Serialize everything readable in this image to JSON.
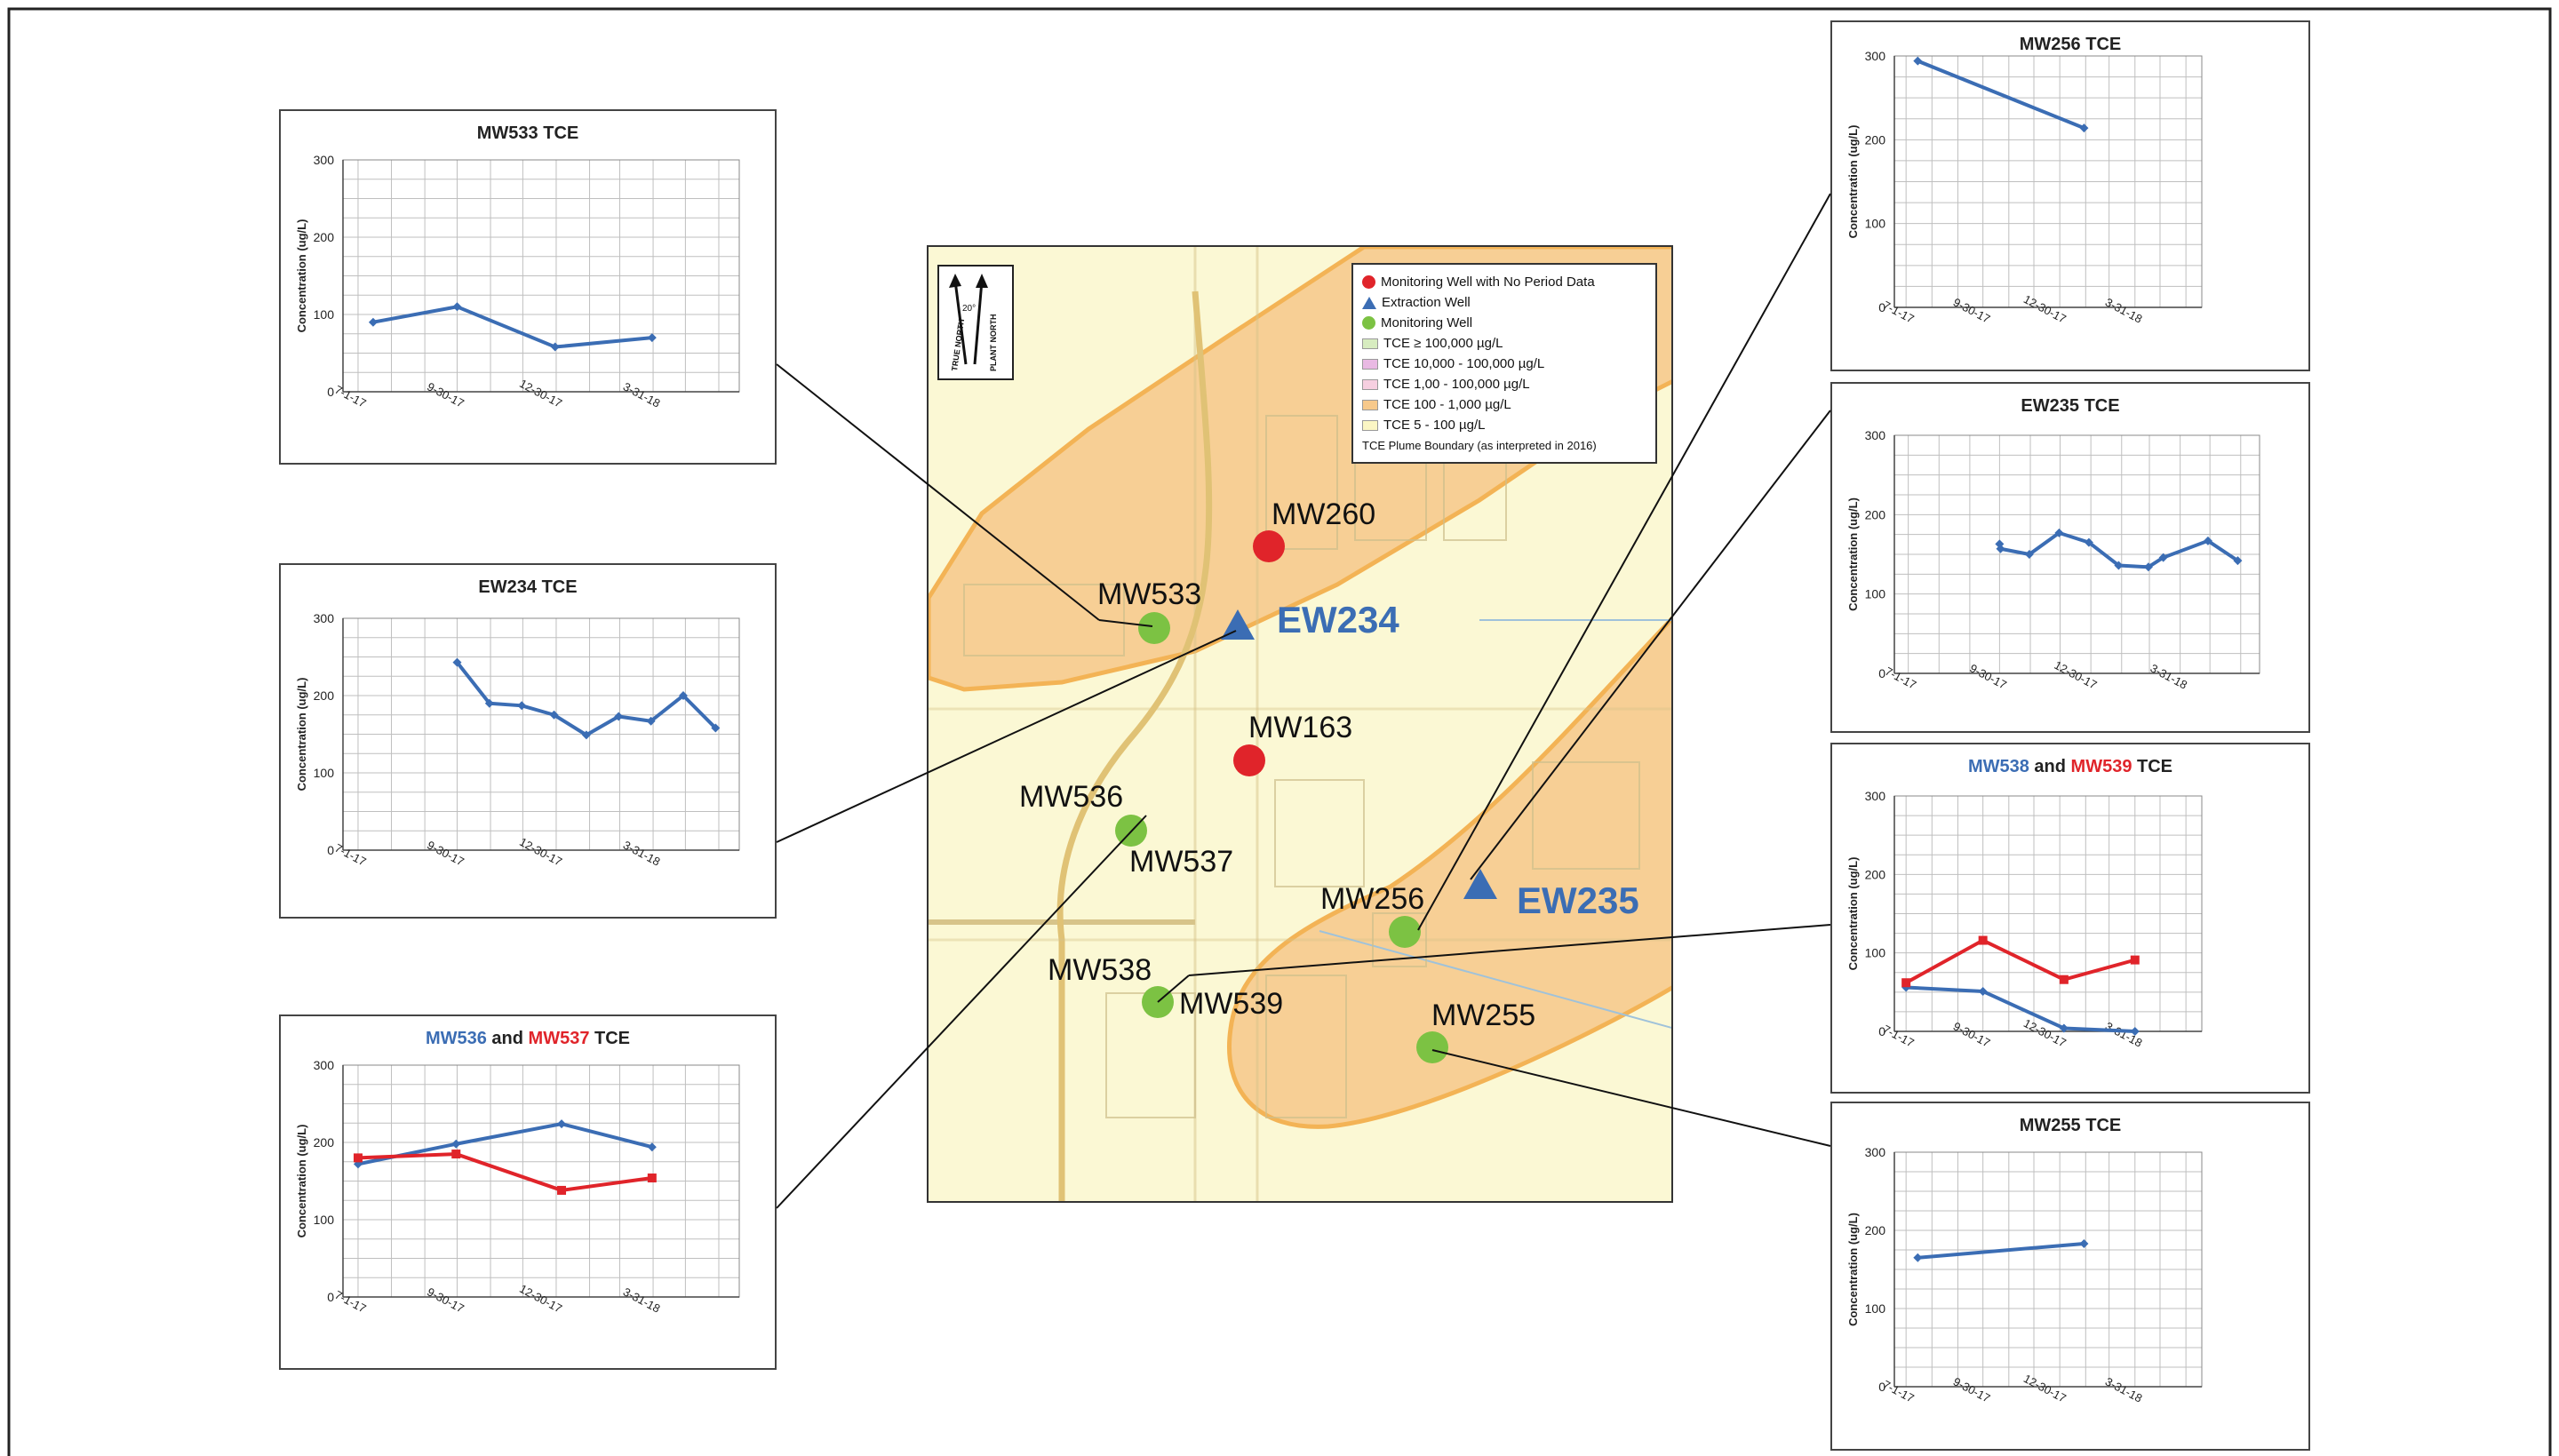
{
  "map": {
    "legend": {
      "items": [
        {
          "label": "Monitoring Well with No Period Data",
          "symbol": "red-dot",
          "color": "#e0242a"
        },
        {
          "label": "Extraction Well",
          "symbol": "blue-triangle",
          "color": "#3b6db4"
        },
        {
          "label": "Monitoring Well",
          "symbol": "green-dot",
          "color": "#7cc243"
        },
        {
          "label": "TCE ≥ 100,000 µg/L",
          "symbol": "swatch",
          "color": "#d7ecc0"
        },
        {
          "label": "TCE 10,000 - 100,000 µg/L",
          "symbol": "swatch",
          "color": "#e9b9e3"
        },
        {
          "label": "TCE 1,00   - 100,000 µg/L",
          "symbol": "swatch",
          "color": "#f6cfe0"
        },
        {
          "label": "TCE 100 - 1,000 µg/L",
          "symbol": "swatch",
          "color": "#f7c98b"
        },
        {
          "label": "TCE 5 - 100 µg/L",
          "symbol": "swatch",
          "color": "#fbf6c4"
        },
        {
          "label": "TCE Plume Boundary (as interpreted in 2016)",
          "symbol": "none",
          "color": ""
        }
      ]
    },
    "north_arrow": {
      "true_north": "TRUE NORTH",
      "plant_north": "PLANT NORTH",
      "angle": "20°"
    },
    "wells": {
      "mw260": "MW260",
      "mw533": "MW533",
      "ew234": "EW234",
      "mw163": "MW163",
      "mw536": "MW536",
      "mw537": "MW537",
      "mw256": "MW256",
      "ew235": "EW235",
      "mw538": "MW538",
      "mw539": "MW539",
      "mw255": "MW255"
    }
  },
  "chart_data": [
    {
      "id": "mw533",
      "type": "line",
      "title": "MW533 TCE",
      "ylabel": "Concentration (ug/L)",
      "ylim": [
        0,
        300
      ],
      "yticks": [
        "0",
        "100",
        "200",
        "300"
      ],
      "xticks": [
        "7-1-17",
        "9-30-17",
        "12-30-17",
        "3-31-18"
      ],
      "series": [
        {
          "color": "#3b6db4",
          "points": [
            [
              "2017-07-15",
              90
            ],
            [
              "2017-10-01",
              110
            ],
            [
              "2017-12-31",
              58
            ],
            [
              "2018-03-31",
              70
            ]
          ]
        }
      ]
    },
    {
      "id": "ew234",
      "type": "line",
      "title": "EW234 TCE",
      "ylabel": "Concentration (ug/L)",
      "ylim": [
        0,
        300
      ],
      "yticks": [
        "0",
        "100",
        "200",
        "300"
      ],
      "xticks": [
        "7-1-17",
        "9-30-17",
        "12-30-17",
        "3-31-18"
      ],
      "series": [
        {
          "color": "#3b6db4",
          "points": [
            [
              "2017-10-01",
              243
            ],
            [
              "2017-10-31",
              190
            ],
            [
              "2017-11-30",
              187
            ],
            [
              "2017-12-30",
              175
            ],
            [
              "2018-01-29",
              149
            ],
            [
              "2018-02-28",
              173
            ],
            [
              "2018-03-30",
              167
            ],
            [
              "2018-04-29",
              200
            ],
            [
              "2018-05-29",
              158
            ]
          ]
        }
      ]
    },
    {
      "id": "mw536",
      "type": "line",
      "title": "MW536 and MW537 TCE",
      "title_parts": [
        "MW536",
        " and ",
        "MW537",
        " TCE"
      ],
      "ylabel": "Concentration (ug/L)",
      "ylim": [
        0,
        300
      ],
      "yticks": [
        "0",
        "100",
        "200",
        "300"
      ],
      "xticks": [
        "7-1-17",
        "9-30-17",
        "12-30-17",
        "3-31-18"
      ],
      "series": [
        {
          "name": "MW536",
          "color": "#3b6db4",
          "points": [
            [
              "2017-07-01",
              172
            ],
            [
              "2017-09-30",
              198
            ],
            [
              "2018-01-06",
              224
            ],
            [
              "2018-03-31",
              194
            ]
          ]
        },
        {
          "name": "MW537",
          "color": "#e0242a",
          "points": [
            [
              "2017-07-01",
              180
            ],
            [
              "2017-09-30",
              185
            ],
            [
              "2018-01-06",
              138
            ],
            [
              "2018-03-31",
              154
            ]
          ]
        }
      ]
    },
    {
      "id": "mw256",
      "type": "line",
      "title": "MW256 TCE",
      "ylabel": "Concentration (ug/L)",
      "ylim": [
        0,
        300
      ],
      "yticks": [
        "0",
        "100",
        "200",
        "300"
      ],
      "xticks": [
        "7-1-17",
        "9-30-17",
        "12-30-17",
        "3-31-18"
      ],
      "series": [
        {
          "color": "#3b6db4",
          "points": [
            [
              "2017-07-15",
              294
            ],
            [
              "2018-01-30",
              214
            ]
          ]
        }
      ]
    },
    {
      "id": "ew235",
      "type": "line",
      "title": "EW235 TCE",
      "ylabel": "Concentration (ug/L)",
      "ylim": [
        0,
        300
      ],
      "yticks": [
        "0",
        "100",
        "200",
        "300"
      ],
      "xticks": [
        "7-1-17",
        "9-30-17",
        "12-30-17",
        "3-31-18"
      ],
      "series": [
        {
          "color": "#3b6db4",
          "points": [
            [
              "2017-10-01",
              163
            ],
            [
              "2017-10-02",
              157
            ],
            [
              "2017-10-31",
              150
            ],
            [
              "2017-11-30",
              177
            ],
            [
              "2017-12-30",
              165
            ],
            [
              "2018-01-29",
              136
            ],
            [
              "2018-02-28",
              134
            ],
            [
              "2018-03-15",
              146
            ],
            [
              "2018-04-29",
              167
            ],
            [
              "2018-05-29",
              142
            ]
          ]
        }
      ]
    },
    {
      "id": "mw538",
      "type": "line",
      "title": "MW538 and MW539 TCE",
      "title_parts": [
        "MW538",
        " and ",
        "MW539",
        " TCE"
      ],
      "ylabel": "Concentration (ug/L)",
      "ylim": [
        0,
        300
      ],
      "yticks": [
        "0",
        "100",
        "200",
        "300"
      ],
      "xticks": [
        "7-1-17",
        "9-30-17",
        "12-30-17",
        "3-31-18"
      ],
      "series": [
        {
          "name": "MW538",
          "color": "#3b6db4",
          "points": [
            [
              "2017-07-01",
              56
            ],
            [
              "2017-10-01",
              51
            ],
            [
              "2018-01-06",
              4
            ],
            [
              "2018-04-01",
              0
            ]
          ]
        },
        {
          "name": "MW539",
          "color": "#e0242a",
          "points": [
            [
              "2017-07-01",
              62
            ],
            [
              "2017-10-01",
              116
            ],
            [
              "2018-01-06",
              66
            ],
            [
              "2018-04-01",
              91
            ]
          ]
        }
      ]
    },
    {
      "id": "mw255",
      "type": "line",
      "title": "MW255 TCE",
      "ylabel": "Concentration (ug/L)",
      "ylim": [
        0,
        300
      ],
      "yticks": [
        "0",
        "100",
        "200",
        "300"
      ],
      "xticks": [
        "7-1-17",
        "9-30-17",
        "12-30-17",
        "3-31-18"
      ],
      "series": [
        {
          "color": "#3b6db4",
          "points": [
            [
              "2017-07-15",
              165
            ],
            [
              "2018-01-30",
              183
            ]
          ]
        }
      ]
    }
  ]
}
